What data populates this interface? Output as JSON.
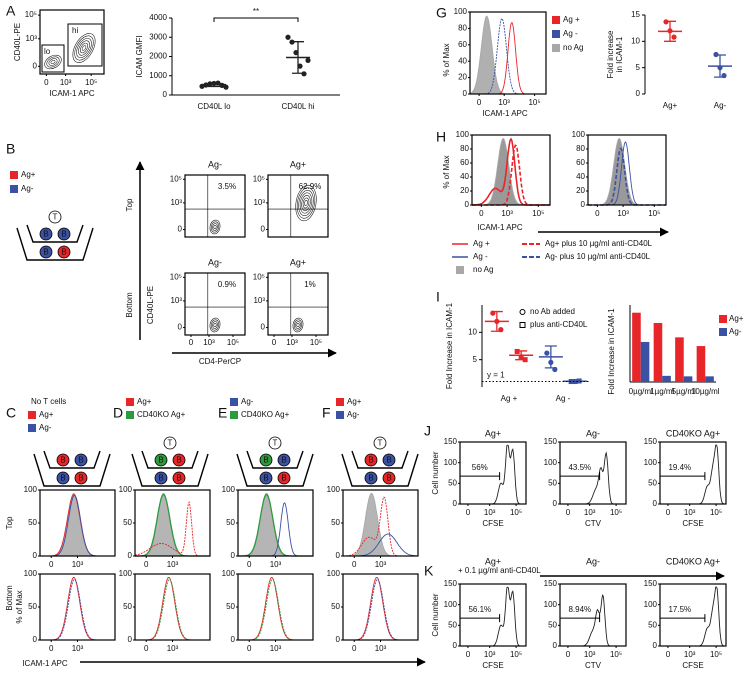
{
  "panels": {
    "A": {
      "letter": "A",
      "y_label": "CD40L-PE",
      "x_label": "ICAM-1 APC",
      "gates": [
        "hi",
        "lo"
      ],
      "yticks": [
        "10⁵",
        "10³",
        "0"
      ],
      "xticks": [
        "0",
        "10³",
        "10⁵"
      ]
    },
    "B": {
      "letter": "B",
      "legend": [
        "Ag+",
        "Ag-"
      ],
      "well": [
        "T",
        "B",
        "B",
        "B",
        "B"
      ],
      "row_labels": [
        "Top",
        "Bottom"
      ],
      "y_label": "CD40L-PE",
      "x_label": "CD4-PerCP",
      "plots": [
        {
          "title": "Ag-",
          "percent": "3.5%"
        },
        {
          "title": "Ag+",
          "percent": "62.9%"
        },
        {
          "title": "Ag-",
          "percent": "0.9%"
        },
        {
          "title": "Ag+",
          "percent": "1%"
        }
      ],
      "yticks": [
        "10⁵",
        "10³",
        "0"
      ],
      "xticks": [
        "0",
        "10³",
        "10⁵"
      ]
    },
    "CF": {
      "letters": [
        "C",
        "D",
        "E",
        "F"
      ],
      "legends": [
        [
          "No T cells",
          "Ag+",
          "Ag-"
        ],
        [
          "Ag+",
          "CD40KO Ag+"
        ],
        [
          "Ag-",
          "CD40KO Ag+"
        ],
        [
          "Ag+",
          "Ag-"
        ]
      ],
      "wells": [
        [
          "B",
          "B",
          "B",
          "B"
        ],
        [
          "T",
          "B",
          "B",
          "B",
          "B"
        ],
        [
          "T",
          "B",
          "B",
          "B",
          "B"
        ],
        [
          "T",
          "B",
          "B",
          "B",
          "B"
        ]
      ],
      "row_labels": [
        "Top",
        "Bottom"
      ],
      "y_label": "% of Max",
      "yticks": [
        100,
        50,
        0
      ],
      "xticks": [
        "0",
        "10³"
      ],
      "x_label": "ICAM-1 APC"
    },
    "G": {
      "letter": "G",
      "y_label": "% of Max",
      "yticks": [
        100,
        80,
        60,
        40,
        20,
        0
      ],
      "xticks": [
        "0",
        "10³",
        "10⁵"
      ],
      "x_label": "ICAM-1 APC",
      "legend": [
        "Ag +",
        "Ag -",
        "no Ag"
      ]
    },
    "H": {
      "letter": "H",
      "y_label": "% of Max",
      "yticks": [
        100,
        80,
        60,
        40,
        20,
        0
      ],
      "xticks": [
        "0",
        "10³",
        "10⁵"
      ],
      "x_label": "ICAM-1 APC",
      "legend": [
        "Ag +",
        "Ag -",
        "no Ag",
        "Ag+ plus 10 µg/ml anti-CD40L",
        "Ag- plus 10 µg/ml anti-CD40L"
      ]
    },
    "I": {
      "letter": "I"
    },
    "J": {
      "letter": "J",
      "y_label": "Cell number",
      "yticks": [
        150,
        100,
        50,
        0
      ],
      "xticks": [
        "0",
        "10³",
        "10⁵"
      ],
      "plots": [
        {
          "title": "Ag+",
          "percent": "56%",
          "x_label": "CFSE"
        },
        {
          "title": "Ag-",
          "percent": "43.5%",
          "x_label": "CTV"
        },
        {
          "title": "CD40KO Ag+",
          "percent": "19.4%",
          "x_label": "CFSE"
        }
      ]
    },
    "K": {
      "letter": "K",
      "note": "+ 0.1 µg/ml anti-CD40L",
      "y_label": "Cell number",
      "yticks": [
        150,
        100,
        50,
        0
      ],
      "xticks": [
        "0",
        "10³",
        "10⁵"
      ],
      "plots": [
        {
          "title": "Ag+",
          "percent": "56.1%",
          "x_label": "CFSE"
        },
        {
          "title": "Ag-",
          "percent": "8.94%",
          "x_label": "CTV"
        },
        {
          "title": "CD40KO Ag+",
          "percent": "17.5%",
          "x_label": "CFSE"
        }
      ]
    }
  },
  "chart_data": [
    {
      "type": "dot",
      "y_label": "ICAM GMFI",
      "categories": [
        "CD40L lo",
        "CD40L hi"
      ],
      "points": [
        [
          450,
          520,
          580,
          600,
          620,
          500,
          410
        ],
        [
          3000,
          2750,
          2200,
          1500,
          1100,
          1800
        ]
      ],
      "means": [
        540,
        1950
      ],
      "errors": [
        100,
        820
      ],
      "color": "#222222",
      "ylim": [
        0,
        4000
      ],
      "yticks": [
        0,
        1000,
        2000,
        3000,
        4000
      ],
      "annotation": "**"
    },
    {
      "type": "dot",
      "y_label": [
        "Fold increase",
        "in ICAM-1"
      ],
      "categories": [
        "Ag+",
        "Ag-"
      ],
      "points": [
        [
          13.7,
          12,
          10.8
        ],
        [
          7.5,
          5,
          3.5
        ]
      ],
      "means": [
        11.9,
        5.3
      ],
      "errors": [
        1.9,
        2.1
      ],
      "colors": [
        "#e8262a",
        "#3b51a3"
      ],
      "ylim": [
        0,
        15
      ],
      "yticks": [
        0,
        5,
        10,
        15
      ]
    },
    {
      "type": "dot",
      "y_label": "Fold Increase in ICAM-1",
      "categories": [
        "Ag +",
        "Ag -"
      ],
      "series": [
        {
          "name": "no Ab added",
          "marker": "circle",
          "points": [
            [
              13.5,
              12,
              10.5
            ],
            [
              6.2,
              4.5,
              3.2
            ]
          ],
          "means": [
            12,
            5.5
          ],
          "errors": [
            1.8,
            2
          ]
        },
        {
          "name": "plus anti-CD40L",
          "marker": "square",
          "points": [
            [
              6.5,
              5.5,
              5
            ],
            [
              1,
              1,
              1.1
            ]
          ],
          "means": [
            5.8,
            1.05
          ],
          "errors": [
            0.8,
            0.05
          ]
        }
      ],
      "colors": [
        "#e8262a",
        "#3b51a3"
      ],
      "ylim": [
        0,
        15
      ],
      "yticks": [
        5,
        10
      ],
      "reference": {
        "value": 1,
        "label": "y = 1"
      }
    },
    {
      "type": "bar",
      "y_label": "Fold Increase in ICAM-1",
      "categories": [
        "0µg/ml",
        "1µg/ml",
        "5µg/ml",
        "10µg/ml"
      ],
      "series": [
        {
          "name": "Ag+",
          "color": "#e8262a",
          "values": [
            13.5,
            11.5,
            8.7,
            7
          ]
        },
        {
          "name": "Ag-",
          "color": "#3b51a3",
          "values": [
            7.8,
            1.2,
            1.1,
            1.1
          ]
        }
      ],
      "ylim": [
        0,
        15
      ]
    }
  ]
}
